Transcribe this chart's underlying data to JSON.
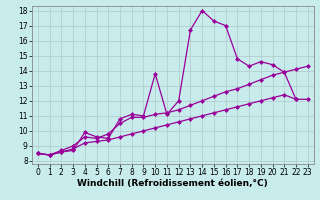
{
  "xlabel": "Windchill (Refroidissement éolien,°C)",
  "bg_color": "#c8ecec",
  "grid_color": "#b0c8c8",
  "line_color": "#990099",
  "xlim": [
    -0.5,
    23.5
  ],
  "ylim": [
    7.8,
    18.3
  ],
  "xticks": [
    0,
    1,
    2,
    3,
    4,
    5,
    6,
    7,
    8,
    9,
    10,
    11,
    12,
    13,
    14,
    15,
    16,
    17,
    18,
    19,
    20,
    21,
    22,
    23
  ],
  "yticks": [
    8,
    9,
    10,
    11,
    12,
    13,
    14,
    15,
    16,
    17,
    18
  ],
  "line1_x": [
    0,
    1,
    2,
    3,
    4,
    5,
    6,
    7,
    8,
    9,
    10,
    11,
    12,
    13,
    14,
    15,
    16,
    17,
    18,
    19,
    20,
    21,
    22
  ],
  "line1_y": [
    8.5,
    8.4,
    8.6,
    8.7,
    9.9,
    9.6,
    9.5,
    10.8,
    11.1,
    11.0,
    13.8,
    11.1,
    12.0,
    16.7,
    18.0,
    17.3,
    17.0,
    14.8,
    14.3,
    14.6,
    14.4,
    13.9,
    12.1
  ],
  "line2_x": [
    0,
    1,
    2,
    3,
    4,
    5,
    6,
    7,
    8,
    9,
    10,
    11,
    12,
    13,
    14,
    15,
    16,
    17,
    18,
    19,
    20,
    21,
    22,
    23
  ],
  "line2_y": [
    8.5,
    8.4,
    8.7,
    9.0,
    9.6,
    9.5,
    9.8,
    10.5,
    10.9,
    10.9,
    11.1,
    11.2,
    11.4,
    11.7,
    12.0,
    12.3,
    12.6,
    12.8,
    13.1,
    13.4,
    13.7,
    13.9,
    14.1,
    14.3
  ],
  "line3_x": [
    0,
    1,
    2,
    3,
    4,
    5,
    6,
    7,
    8,
    9,
    10,
    11,
    12,
    13,
    14,
    15,
    16,
    17,
    18,
    19,
    20,
    21,
    22,
    23
  ],
  "line3_y": [
    8.5,
    8.4,
    8.6,
    8.8,
    9.2,
    9.3,
    9.4,
    9.6,
    9.8,
    10.0,
    10.2,
    10.4,
    10.6,
    10.8,
    11.0,
    11.2,
    11.4,
    11.6,
    11.8,
    12.0,
    12.2,
    12.4,
    12.1,
    12.1
  ],
  "marker": "D",
  "markersize": 2,
  "linewidth": 0.9,
  "xlabel_fontsize": 6.5,
  "tick_fontsize": 5.5
}
